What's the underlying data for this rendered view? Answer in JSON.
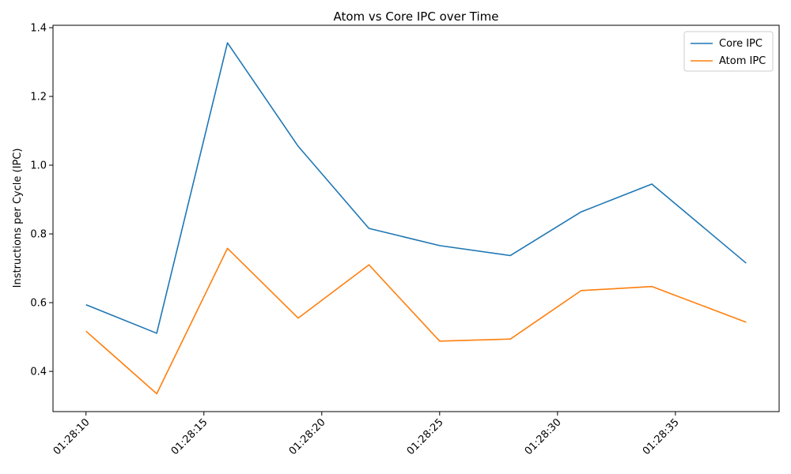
{
  "chart_data": {
    "type": "line",
    "title": "Atom vs Core IPC over Time",
    "xlabel": "",
    "ylabel": "Instructions per Cycle (IPC)",
    "x": [
      "01:28:10",
      "01:28:13",
      "01:28:16",
      "01:28:19",
      "01:28:22",
      "01:28:25",
      "01:28:28",
      "01:28:31",
      "01:28:34",
      "01:28:38"
    ],
    "x_seconds": [
      10,
      13,
      16,
      19,
      22,
      25,
      28,
      31,
      34,
      38
    ],
    "xlim": [
      8.6,
      39.4
    ],
    "xticks": [
      {
        "value": 10,
        "label": "01:28:10"
      },
      {
        "value": 15,
        "label": "01:28:15"
      },
      {
        "value": 20,
        "label": "01:28:20"
      },
      {
        "value": 25,
        "label": "01:28:25"
      },
      {
        "value": 30,
        "label": "01:28:30"
      },
      {
        "value": 35,
        "label": "01:28:35"
      }
    ],
    "ylim": [
      0.283,
      1.407
    ],
    "yticks": [
      {
        "value": 0.4,
        "label": "0.4"
      },
      {
        "value": 0.6,
        "label": "0.6"
      },
      {
        "value": 0.8,
        "label": "0.8"
      },
      {
        "value": 1.0,
        "label": "1.0"
      },
      {
        "value": 1.2,
        "label": "1.2"
      },
      {
        "value": 1.4,
        "label": "1.4"
      }
    ],
    "grid": false,
    "legend_position": "top-right",
    "series": [
      {
        "name": "Core IPC",
        "color": "#1f77b4",
        "values": [
          0.594,
          0.511,
          1.356,
          1.055,
          0.816,
          0.766,
          0.737,
          0.864,
          0.945,
          0.715
        ]
      },
      {
        "name": "Atom IPC",
        "color": "#ff7f0e",
        "values": [
          0.517,
          0.335,
          0.758,
          0.555,
          0.71,
          0.488,
          0.494,
          0.635,
          0.647,
          0.543
        ]
      }
    ]
  }
}
